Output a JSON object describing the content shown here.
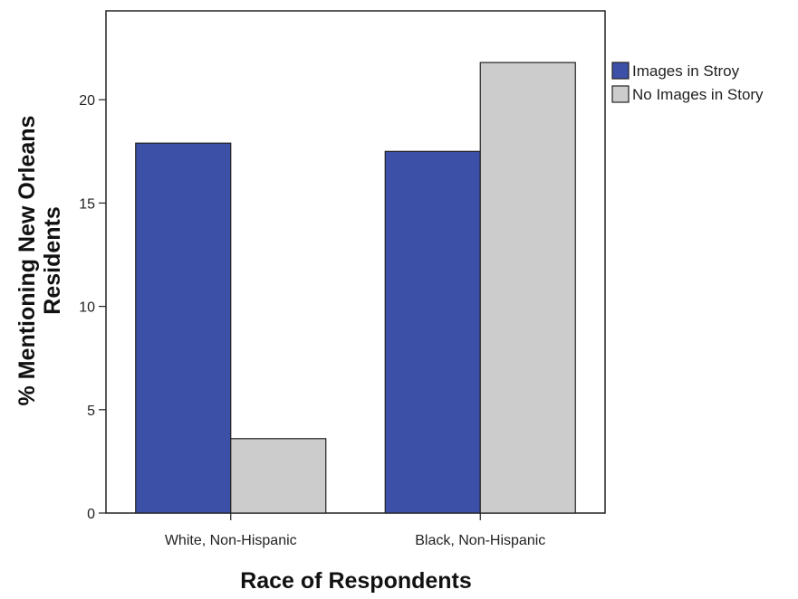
{
  "chart_data": {
    "type": "bar",
    "categories": [
      "White, Non-Hispanic",
      "Black, Non-Hispanic"
    ],
    "series": [
      {
        "name": "Images in Stroy",
        "values": [
          17.9,
          17.5
        ],
        "color": "#3c50a8"
      },
      {
        "name": "No Images in Story",
        "values": [
          3.6,
          21.8
        ],
        "color": "#cccccc"
      }
    ],
    "yticks": [
      0,
      5,
      10,
      15,
      20
    ],
    "ylim": [
      0,
      24.3
    ],
    "xlabel": "Race of Respondents",
    "ylabel": [
      "% Mentioning New Orleans",
      "Residents"
    ],
    "legend_position": "right",
    "grid": false
  }
}
